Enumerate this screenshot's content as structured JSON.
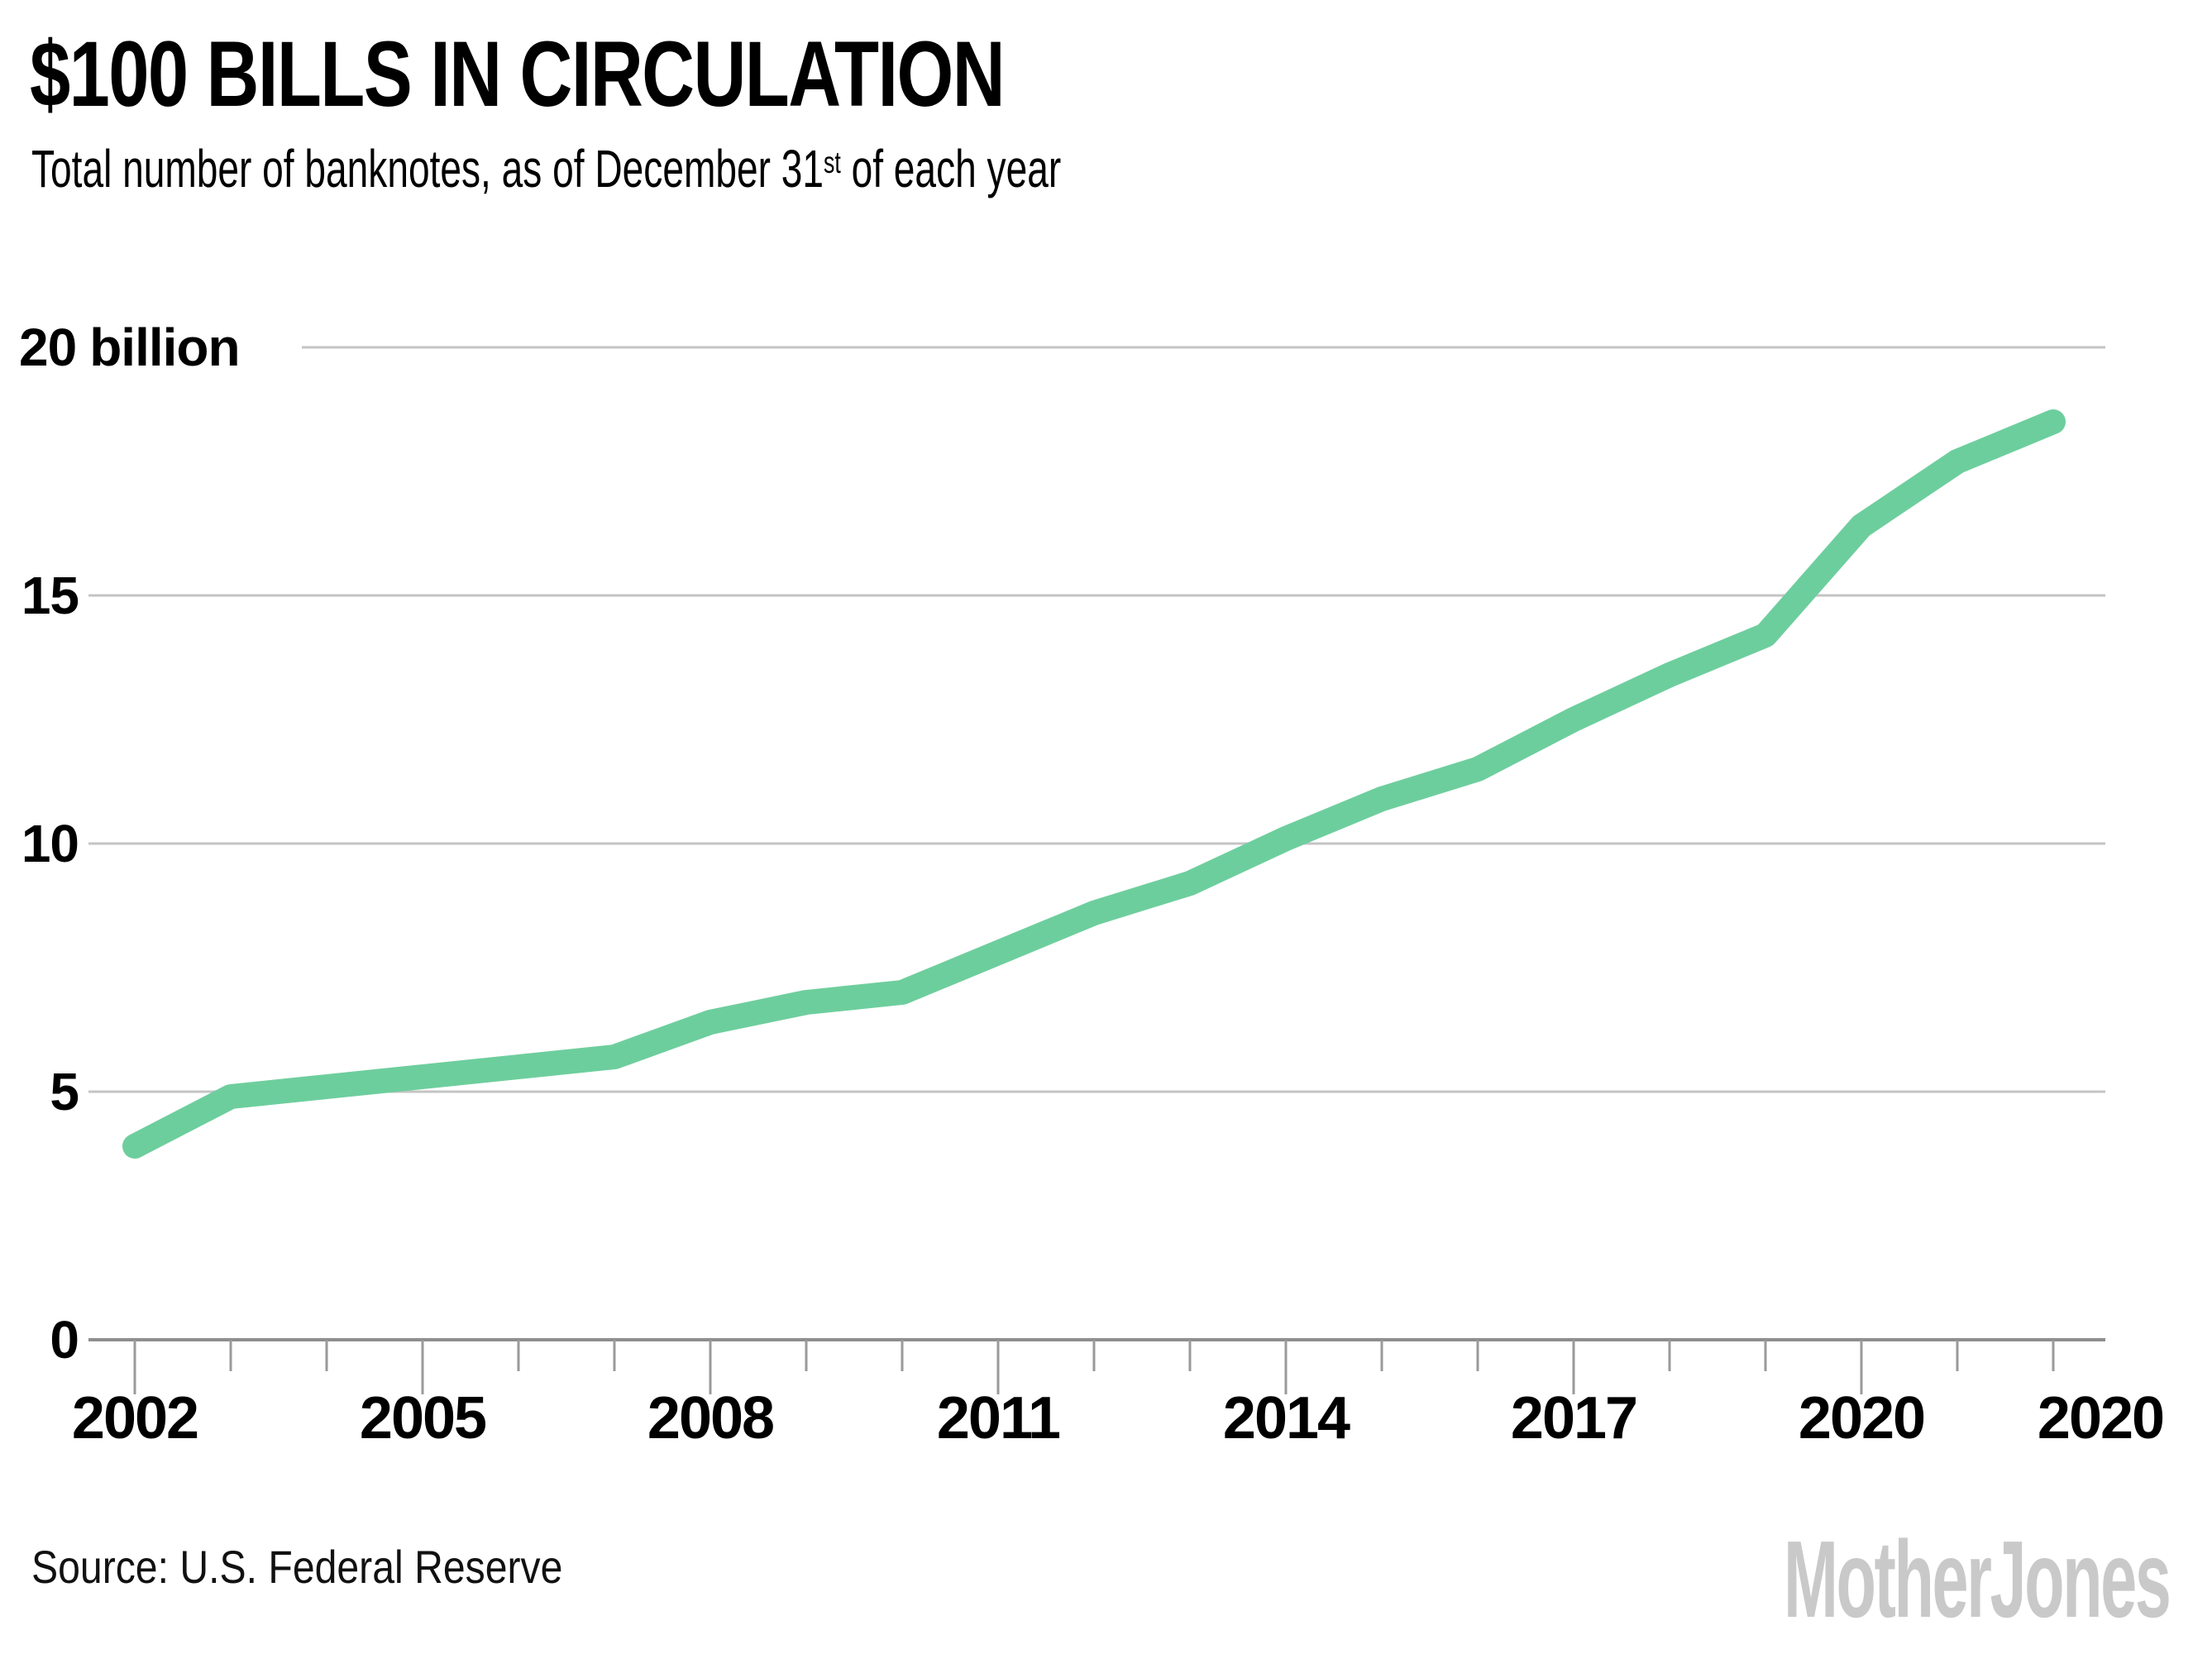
{
  "header": {
    "title": "$100 BILLS IN CIRCULATION",
    "subtitle_prefix": "Total number of banknotes, as of December 31",
    "subtitle_superscript": "st",
    "subtitle_suffix": " of each year"
  },
  "footer": {
    "source": "Source: U.S. Federal Reserve",
    "logo": "MotherJones"
  },
  "colors": {
    "line": "#6dce9d",
    "gridline": "#c4c4c4",
    "axis": "#8e8e8e",
    "tick": "#9a9a9a",
    "text": "#000000",
    "logo": "#c9c9c9"
  },
  "chart_data": {
    "type": "line",
    "title": "$100 BILLS IN CIRCULATION",
    "subtitle": "Total number of banknotes, as of December 31st of each year",
    "series_name": "$100 bills in circulation",
    "unit": "billions of banknotes",
    "grid": "horizontal",
    "legend": "none",
    "xlim": [
      2002,
      2022
    ],
    "ylim": [
      0,
      20
    ],
    "x": [
      2002,
      2003,
      2004,
      2005,
      2006,
      2007,
      2008,
      2009,
      2010,
      2011,
      2012,
      2013,
      2014,
      2015,
      2016,
      2017,
      2018,
      2019,
      2020,
      2021,
      2022
    ],
    "values": [
      3.9,
      4.9,
      5.1,
      5.3,
      5.5,
      5.7,
      6.4,
      6.8,
      7.0,
      7.8,
      8.6,
      9.2,
      10.1,
      10.9,
      11.5,
      12.5,
      13.4,
      14.2,
      16.4,
      17.7,
      18.5
    ],
    "y_ticks": [
      {
        "value": 0,
        "label": "0"
      },
      {
        "value": 5,
        "label": "5"
      },
      {
        "value": 10,
        "label": "10"
      },
      {
        "value": 15,
        "label": "15"
      },
      {
        "value": 20,
        "label": "20",
        "suffix": "billion"
      }
    ],
    "x_labeled_years": [
      2002,
      2005,
      2008,
      2011,
      2014,
      2017,
      2020
    ],
    "end_axis_label": "2020",
    "long_tick_every": 3
  }
}
